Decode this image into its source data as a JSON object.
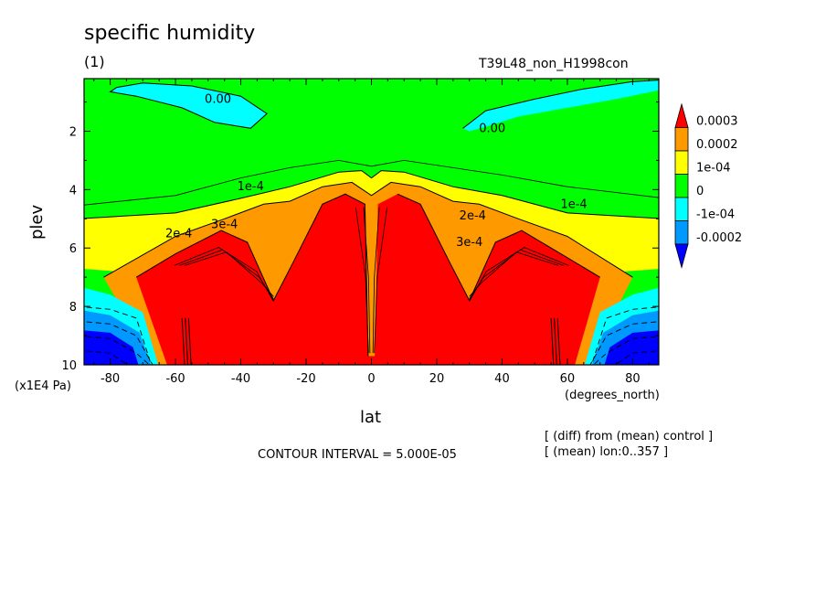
{
  "header": {
    "title": "specific humidity",
    "subtitle": "(1)",
    "run_name": "T39L48_non_H1998con"
  },
  "footer": {
    "contour_interval": "CONTOUR INTERVAL = 5.000E-05",
    "note_diff": "[ (diff) from (mean) control ]",
    "note_mean": "[ (mean) lon:0..357 ]"
  },
  "chart_data": {
    "type": "heatmap",
    "title": "specific humidity",
    "subtitle": "(1)",
    "xlabel": "lat",
    "x_unit": "(degrees_north)",
    "ylabel": "plev",
    "y_unit": "(x1E4 Pa)",
    "xlim": [
      -88,
      88
    ],
    "ylim": [
      10,
      0.2
    ],
    "x_ticks": [
      -80,
      -60,
      -40,
      -20,
      0,
      20,
      40,
      60,
      80
    ],
    "y_ticks": [
      2,
      4,
      6,
      8,
      10
    ],
    "legend": {
      "position": "right",
      "labels": [
        "0.0003",
        "0.0002",
        "1e-04",
        "0",
        "-1e-04",
        "-0.0002"
      ],
      "colors": [
        "#ff0000",
        "#ff9900",
        "#ffff00",
        "#00ff00",
        "#00ffff",
        "#0099ff",
        "#0000ff"
      ]
    },
    "contour_labels": [
      {
        "text": "0.00",
        "lat": -47,
        "plev": 0.9
      },
      {
        "text": "0.00",
        "lat": 37,
        "plev": 1.9
      },
      {
        "text": "1e-4",
        "lat": -37,
        "plev": 3.9
      },
      {
        "text": "1e-4",
        "lat": 62,
        "plev": 4.5
      },
      {
        "text": "2e-4",
        "lat": -59,
        "plev": 5.5
      },
      {
        "text": "3e-4",
        "lat": -45,
        "plev": 5.2
      },
      {
        "text": "2e-4",
        "lat": 31,
        "plev": 4.9
      },
      {
        "text": "3e-4",
        "lat": 30,
        "plev": 5.8
      }
    ],
    "contour_interval": 5e-05
  }
}
